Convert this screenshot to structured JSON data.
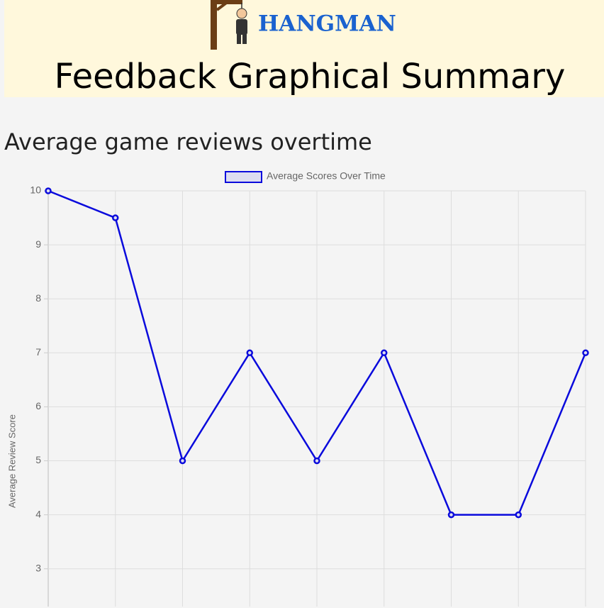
{
  "header": {
    "logo_text": "HANGMAN",
    "title": "Feedback Graphical Summary"
  },
  "section_title": "Average game reviews overtime",
  "chart_data": {
    "type": "line",
    "series": [
      {
        "name": "Average Scores Over Time",
        "color": "#0a0adc",
        "values": [
          10,
          9.5,
          5,
          7,
          5,
          7,
          4,
          4,
          7
        ]
      }
    ],
    "y_label": "Average Review Score",
    "ylim": [
      2.3,
      10
    ],
    "yticks": [
      3,
      4,
      5,
      6,
      7,
      8,
      9,
      10
    ],
    "grid": true
  }
}
